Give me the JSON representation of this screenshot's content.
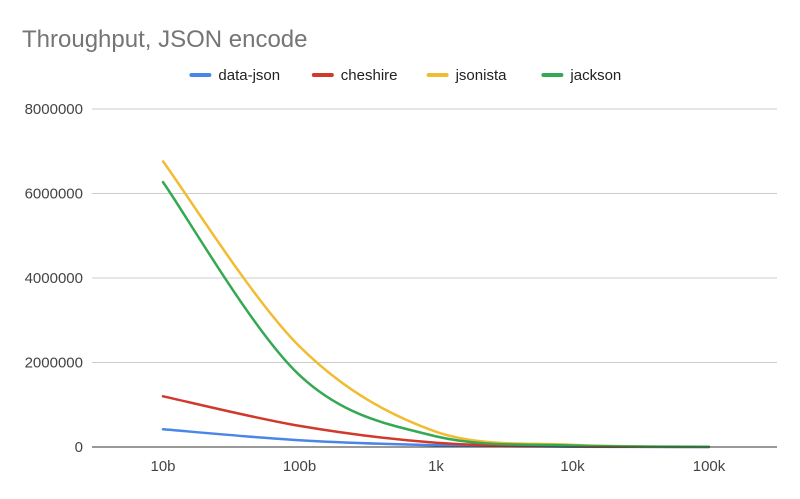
{
  "chart_data": {
    "type": "line",
    "title": "Throughput, JSON encode",
    "xlabel": "",
    "ylabel": "",
    "categories": [
      "10b",
      "100b",
      "1k",
      "10k",
      "100k"
    ],
    "ylim": [
      0,
      8000000
    ],
    "yticks": [
      "0",
      "2000000",
      "4000000",
      "6000000",
      "8000000"
    ],
    "ytick_values": [
      0,
      2000000,
      4000000,
      6000000,
      8000000
    ],
    "grid": true,
    "legend_position": "top",
    "series": [
      {
        "name": "data-json",
        "color": "#4a86e8",
        "values": [
          420000,
          160000,
          40000,
          8000,
          1000
        ]
      },
      {
        "name": "cheshire",
        "color": "#d0392b",
        "values": [
          1200000,
          500000,
          100000,
          15000,
          2000
        ]
      },
      {
        "name": "jsonista",
        "color": "#f1bb32",
        "values": [
          6760000,
          2380000,
          360000,
          50000,
          5000
        ]
      },
      {
        "name": "jackson",
        "color": "#34a853",
        "values": [
          6270000,
          1700000,
          250000,
          35000,
          4000
        ]
      }
    ]
  }
}
